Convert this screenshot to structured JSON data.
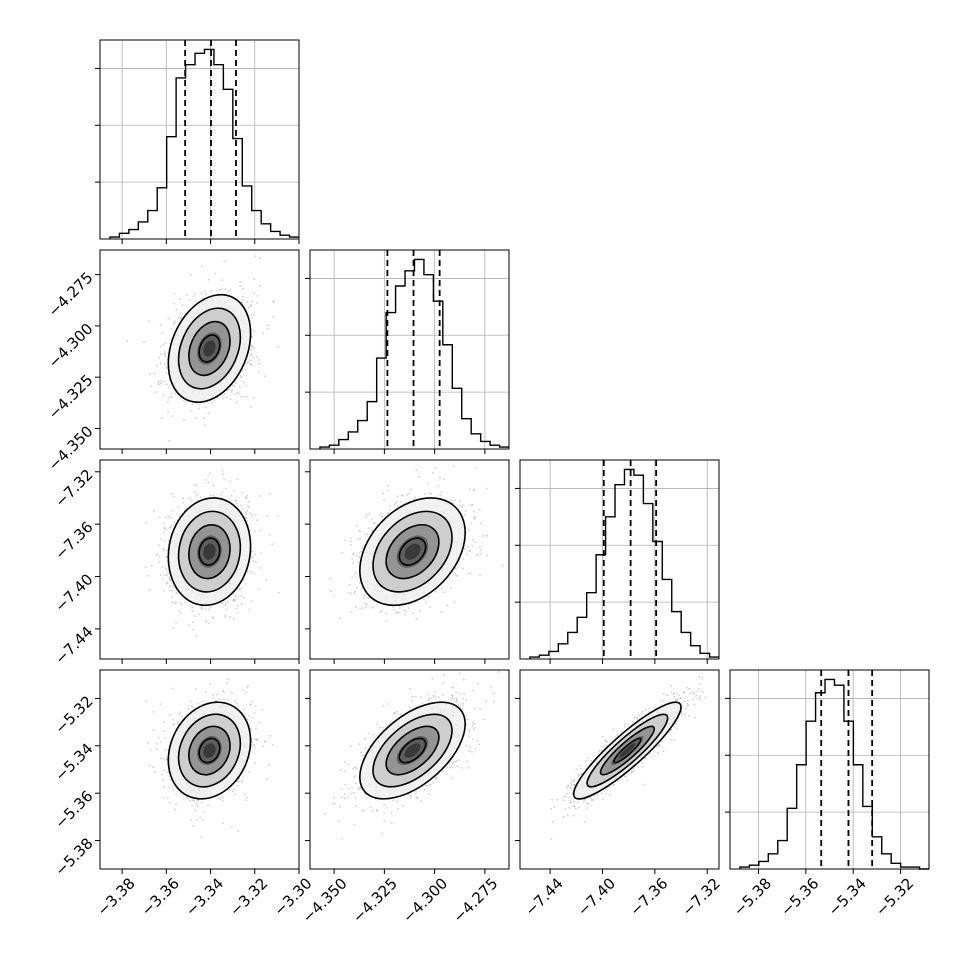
{
  "chart_data": {
    "type": "corner",
    "parameters": [
      {
        "xlim": [
          -3.39,
          -3.3
        ],
        "ylim_as_y": [
          -4.36,
          -4.263
        ],
        "xticks": [
          -3.38,
          -3.36,
          -3.34,
          -3.32,
          -3.3
        ],
        "xtick_labels": [
          "−3.38",
          "−3.36",
          "−3.34",
          "−3.32",
          "−3.30"
        ],
        "yticks": [],
        "ytick_labels": [],
        "quantiles": [
          -3.3515,
          -3.3398,
          -3.3285
        ],
        "hist_counts": [
          1,
          3,
          5,
          9,
          15,
          27,
          54,
          85,
          92,
          98,
          100,
          92,
          79,
          53,
          28,
          15,
          8,
          4,
          2,
          1
        ]
      },
      {
        "xlim": [
          -4.362,
          -4.263
        ],
        "ylim_as_y": [
          -4.36,
          -4.263
        ],
        "xticks": [
          -4.35,
          -4.325,
          -4.3,
          -4.275
        ],
        "xtick_labels": [
          "−4.350",
          "−4.325",
          "−4.300",
          "−4.275"
        ],
        "yticks": [
          -4.275,
          -4.3,
          -4.325,
          -4.35
        ],
        "ytick_labels": [
          "−4.275",
          "−4.300",
          "−4.325",
          "−4.350"
        ],
        "quantiles": [
          -4.3235,
          -4.3105,
          -4.2975
        ],
        "hist_counts": [
          1,
          2,
          5,
          9,
          15,
          25,
          48,
          72,
          86,
          94,
          100,
          92,
          78,
          55,
          32,
          16,
          8,
          4,
          2,
          1
        ]
      },
      {
        "xlim": [
          -7.463,
          -7.311
        ],
        "ylim_as_y": [
          -7.463,
          -7.311
        ],
        "xticks": [
          -7.44,
          -7.4,
          -7.36,
          -7.32
        ],
        "xtick_labels": [
          "−7.44",
          "−7.40",
          "−7.36",
          "−7.32"
        ],
        "yticks": [
          -7.32,
          -7.36,
          -7.4,
          -7.44
        ],
        "ytick_labels": [
          "−7.32",
          "−7.36",
          "−7.40",
          "−7.44"
        ],
        "quantiles": [
          -7.399,
          -7.3785,
          -7.359
        ],
        "hist_counts": [
          1,
          2,
          4,
          8,
          14,
          22,
          35,
          55,
          75,
          92,
          100,
          97,
          82,
          62,
          42,
          25,
          14,
          7,
          3,
          1
        ]
      },
      {
        "xlim": [
          -5.392,
          -5.308
        ],
        "ylim_as_y": [
          -5.392,
          -5.308
        ],
        "xticks": [
          -5.38,
          -5.36,
          -5.34,
          -5.32
        ],
        "xtick_labels": [
          "−5.38",
          "−5.36",
          "−5.34",
          "−5.32"
        ],
        "yticks": [
          -5.32,
          -5.34,
          -5.36,
          -5.38
        ],
        "ytick_labels": [
          "−5.32",
          "−5.34",
          "−5.36",
          "−5.38"
        ],
        "quantiles": [
          -5.3535,
          -5.342,
          -5.332
        ],
        "hist_counts": [
          1,
          2,
          4,
          8,
          15,
          32,
          55,
          78,
          93,
          100,
          97,
          78,
          55,
          33,
          17,
          8,
          3,
          1,
          1,
          0
        ]
      }
    ],
    "pairs": [
      {
        "row": 1,
        "col": 0,
        "mean": [
          -3.3405,
          -4.311
        ],
        "sd": [
          0.0093,
          0.0131
        ],
        "corr": 0.28
      },
      {
        "row": 2,
        "col": 0,
        "mean": [
          -3.3405,
          -7.381
        ],
        "sd": [
          0.0093,
          0.0205
        ],
        "corr": 0.1
      },
      {
        "row": 2,
        "col": 1,
        "mean": [
          -4.311,
          -7.381
        ],
        "sd": [
          0.0131,
          0.0205
        ],
        "corr": 0.35
      },
      {
        "row": 3,
        "col": 0,
        "mean": [
          -3.3405,
          -5.342
        ],
        "sd": [
          0.0093,
          0.0102
        ],
        "corr": 0.2
      },
      {
        "row": 3,
        "col": 1,
        "mean": [
          -4.311,
          -5.342
        ],
        "sd": [
          0.0131,
          0.0102
        ],
        "corr": 0.55
      },
      {
        "row": 3,
        "col": 2,
        "mean": [
          -7.381,
          -5.342
        ],
        "sd": [
          0.0205,
          0.0102
        ],
        "corr": 0.9
      }
    ],
    "density_levels_sigma": [
      0.5,
      1.0,
      1.5,
      2.0
    ],
    "hist_max_ticks": [
      0.3,
      0.6,
      0.9
    ],
    "grid": true
  }
}
